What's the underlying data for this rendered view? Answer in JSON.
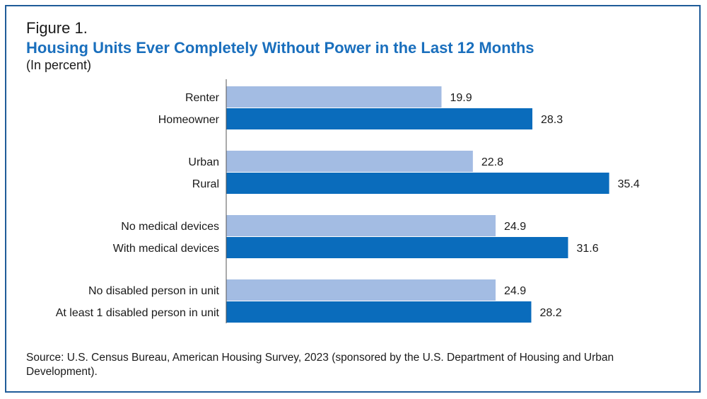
{
  "figure": {
    "label": "Figure 1.",
    "title": "Housing Units Ever Completely Without Power in the Last 12 Months",
    "subtitle": "(In percent)",
    "source": "Source: U.S. Census Bureau, American Housing Survey, 2023 (sponsored by the U.S. Department of Housing and Urban Development)."
  },
  "colors": {
    "light_bar": "#a3bce3",
    "dark_bar": "#0a6cbc",
    "title": "#1a6fbd",
    "border": "#1f5c99",
    "axis": "#555555"
  },
  "chart_data": {
    "type": "bar",
    "orientation": "horizontal",
    "title": "Housing Units Ever Completely Without Power in the Last 12 Months",
    "ylabel": "",
    "xlabel": "",
    "unit": "percent",
    "groups": [
      {
        "bars": [
          {
            "label": "Renter",
            "value": 19.9,
            "shade": "light"
          },
          {
            "label": "Homeowner",
            "value": 28.3,
            "shade": "dark"
          }
        ]
      },
      {
        "bars": [
          {
            "label": "Urban",
            "value": 22.8,
            "shade": "light"
          },
          {
            "label": "Rural",
            "value": 35.4,
            "shade": "dark"
          }
        ]
      },
      {
        "bars": [
          {
            "label": "No medical devices",
            "value": 24.9,
            "shade": "light"
          },
          {
            "label": "With medical devices",
            "value": 31.6,
            "shade": "dark"
          }
        ]
      },
      {
        "bars": [
          {
            "label": "No disabled person in unit",
            "value": 24.9,
            "shade": "light"
          },
          {
            "label": "At least 1 disabled person in unit",
            "value": 28.2,
            "shade": "dark"
          }
        ]
      }
    ]
  }
}
